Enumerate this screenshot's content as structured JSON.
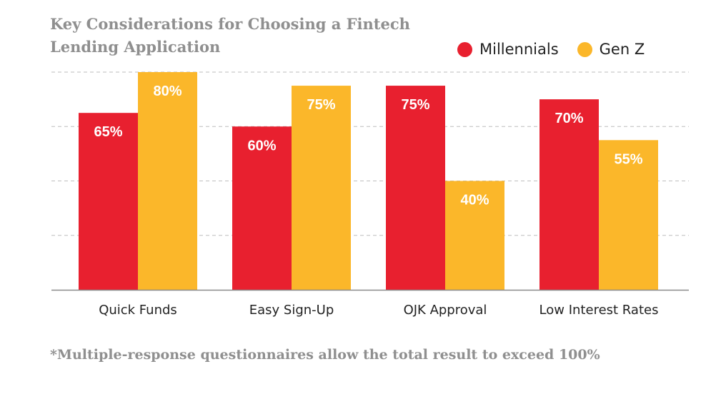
{
  "chart_data": {
    "type": "bar",
    "title": "Key Considerations for Choosing a Fintech Lending Application",
    "categories": [
      "Quick Funds",
      "Easy Sign-Up",
      "OJK Approval",
      "Low Interest Rates"
    ],
    "series": [
      {
        "name": "Millennials",
        "values": [
          65,
          60,
          75,
          70
        ],
        "labels": [
          "65%",
          "60%",
          "75%",
          "70%"
        ],
        "color": "#e8202f"
      },
      {
        "name": "Gen Z",
        "values": [
          80,
          75,
          40,
          55
        ],
        "labels": [
          "80%",
          "75%",
          "40%",
          "55%"
        ],
        "color": "#fbb72a"
      }
    ],
    "ylim": [
      0,
      80
    ],
    "grid": true,
    "legend_position": "top-right"
  },
  "footnote": "*Multiple-response questionnaires allow the total result to exceed 100%"
}
